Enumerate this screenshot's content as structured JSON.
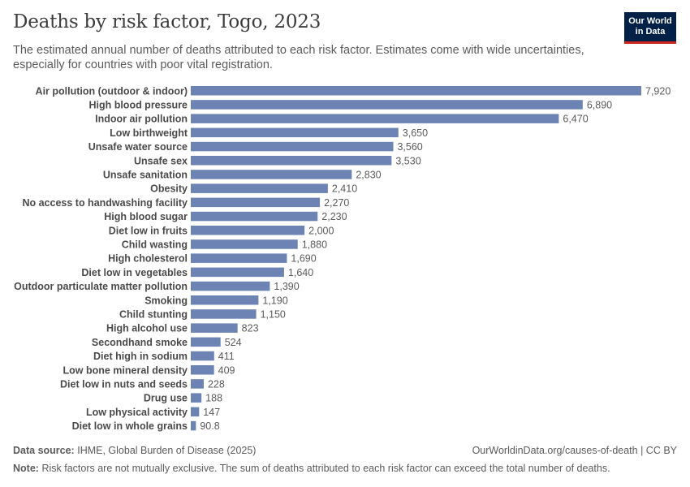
{
  "header": {
    "title": "Deaths by risk factor, Togo, 2023",
    "subtitle": "The estimated annual number of deaths attributed to each risk factor. Estimates come with wide uncertainties, especially for countries with poor vital registration.",
    "logo_line1": "Our World",
    "logo_line2": "in Data"
  },
  "chart_data": {
    "type": "bar",
    "orientation": "horizontal",
    "title": "Deaths by risk factor, Togo, 2023",
    "categories": [
      "Air pollution (outdoor & indoor)",
      "High blood pressure",
      "Indoor air pollution",
      "Low birthweight",
      "Unsafe water source",
      "Unsafe sex",
      "Unsafe sanitation",
      "Obesity",
      "No access to handwashing facility",
      "High blood sugar",
      "Diet low in fruits",
      "Child wasting",
      "High cholesterol",
      "Diet low in vegetables",
      "Outdoor particulate matter pollution",
      "Smoking",
      "Child stunting",
      "High alcohol use",
      "Secondhand smoke",
      "Diet high in sodium",
      "Low bone mineral density",
      "Diet low in nuts and seeds",
      "Drug use",
      "Low physical activity",
      "Diet low in whole grains"
    ],
    "values": [
      7920,
      6890,
      6470,
      3650,
      3560,
      3530,
      2830,
      2410,
      2270,
      2230,
      2000,
      1880,
      1690,
      1640,
      1390,
      1190,
      1150,
      823,
      524,
      411,
      409,
      228,
      188,
      147,
      90.8
    ],
    "value_labels": [
      "7,920",
      "6,890",
      "6,470",
      "3,650",
      "3,560",
      "3,530",
      "2,830",
      "2,410",
      "2,270",
      "2,230",
      "2,000",
      "1,880",
      "1,690",
      "1,640",
      "1,390",
      "1,190",
      "1,150",
      "823",
      "524",
      "411",
      "409",
      "228",
      "188",
      "147",
      "90.8"
    ],
    "xlim": [
      0,
      7920
    ],
    "grid": false,
    "bar_color": "#6d83b3"
  },
  "footer": {
    "source_label": "Data source:",
    "source_text": "IHME, Global Burden of Disease (2025)",
    "url_text": "OurWorldinData.org/causes-of-death | CC BY",
    "note_label": "Note:",
    "note_text": "Risk factors are not mutually exclusive. The sum of deaths attributed to each risk factor can exceed the total number of deaths."
  }
}
